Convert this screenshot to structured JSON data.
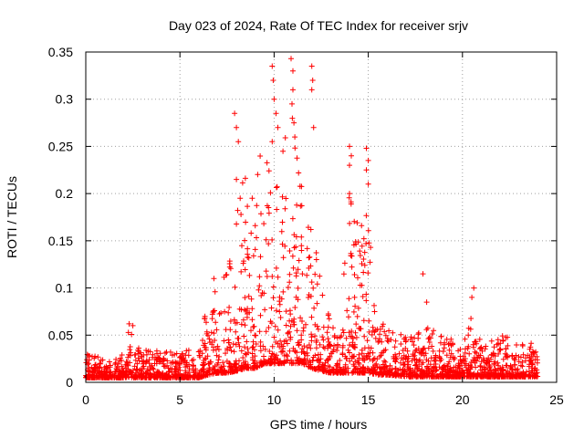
{
  "chart_data": {
    "type": "scatter",
    "title": "Day 023 of 2024, Rate Of TEC Index for receiver srjv",
    "xlabel": "GPS time / hours",
    "ylabel": "ROTI / TECUs",
    "xlim": [
      0,
      25
    ],
    "ylim": [
      0,
      0.35
    ],
    "xticks": [
      0,
      5,
      10,
      15,
      20,
      25
    ],
    "xtick_labels": [
      "0",
      "5",
      "10",
      "15",
      "20",
      "25"
    ],
    "yticks": [
      0,
      0.05,
      0.1,
      0.15,
      0.2,
      0.25,
      0.3,
      0.35
    ],
    "ytick_labels": [
      "0",
      "0.05",
      "0.1",
      "0.15",
      "0.2",
      "0.25",
      "0.3",
      "0.35"
    ],
    "grid": true,
    "marker": "+",
    "color": "#ff0000",
    "x_range_of_data": [
      0,
      24
    ],
    "envelope": {
      "x": [
        0,
        0.5,
        1,
        1.5,
        2,
        2.3,
        2.6,
        3,
        4,
        5,
        5.5,
        6,
        6.5,
        7,
        7.5,
        8,
        8.5,
        9,
        9.5,
        10,
        10.5,
        11,
        11.5,
        12,
        12.5,
        13,
        13.5,
        14,
        14.5,
        15,
        15.5,
        16,
        17,
        18,
        19,
        20,
        20.5,
        21,
        22,
        23,
        24
      ],
      "low": [
        0.005,
        0.005,
        0.005,
        0.005,
        0.005,
        0.005,
        0.005,
        0.005,
        0.005,
        0.005,
        0.005,
        0.005,
        0.008,
        0.01,
        0.01,
        0.012,
        0.015,
        0.015,
        0.02,
        0.02,
        0.02,
        0.02,
        0.02,
        0.015,
        0.012,
        0.01,
        0.01,
        0.01,
        0.01,
        0.01,
        0.008,
        0.008,
        0.006,
        0.006,
        0.006,
        0.006,
        0.006,
        0.006,
        0.006,
        0.006,
        0.006
      ],
      "high": [
        0.03,
        0.03,
        0.025,
        0.025,
        0.03,
        0.06,
        0.04,
        0.035,
        0.035,
        0.03,
        0.04,
        0.035,
        0.09,
        0.1,
        0.12,
        0.2,
        0.22,
        0.2,
        0.28,
        0.22,
        0.25,
        0.3,
        0.2,
        0.16,
        0.12,
        0.06,
        0.06,
        0.2,
        0.18,
        0.2,
        0.07,
        0.06,
        0.05,
        0.06,
        0.05,
        0.04,
        0.08,
        0.04,
        0.05,
        0.045,
        0.04
      ]
    },
    "outliers": [
      [
        7.9,
        0.285
      ],
      [
        8.0,
        0.27
      ],
      [
        8.1,
        0.255
      ],
      [
        8.0,
        0.215
      ],
      [
        8.2,
        0.195
      ],
      [
        9.9,
        0.335
      ],
      [
        9.95,
        0.32
      ],
      [
        10.0,
        0.3
      ],
      [
        9.9,
        0.255
      ],
      [
        10.1,
        0.285
      ],
      [
        10.2,
        0.27
      ],
      [
        10.9,
        0.343
      ],
      [
        11.0,
        0.33
      ],
      [
        11.0,
        0.31
      ],
      [
        10.95,
        0.295
      ],
      [
        11.05,
        0.275
      ],
      [
        11.1,
        0.26
      ],
      [
        12.0,
        0.335
      ],
      [
        12.05,
        0.32
      ],
      [
        12.0,
        0.31
      ],
      [
        12.1,
        0.27
      ],
      [
        14.0,
        0.25
      ],
      [
        14.1,
        0.24
      ],
      [
        14.0,
        0.23
      ],
      [
        14.0,
        0.2
      ],
      [
        14.9,
        0.248
      ],
      [
        15.0,
        0.235
      ],
      [
        15.0,
        0.21
      ],
      [
        14.9,
        0.225
      ],
      [
        17.9,
        0.115
      ],
      [
        18.1,
        0.085
      ],
      [
        20.6,
        0.1
      ],
      [
        20.5,
        0.09
      ],
      [
        2.3,
        0.062
      ],
      [
        2.5,
        0.06
      ],
      [
        6.8,
        0.11
      ]
    ]
  }
}
